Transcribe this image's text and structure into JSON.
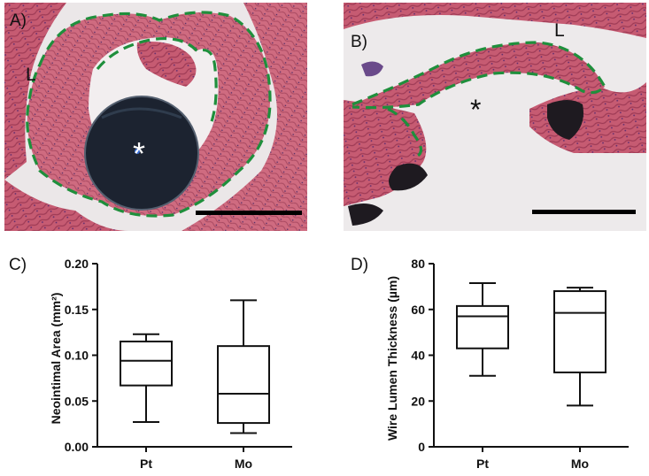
{
  "panels": {
    "a": {
      "letter": "A)",
      "lumen_label": "L",
      "marker": "*"
    },
    "b": {
      "letter": "B)",
      "lumen_label": "L",
      "marker": "*"
    },
    "c": {
      "letter": "C)"
    },
    "d": {
      "letter": "D)"
    }
  },
  "colors": {
    "tissue": "#c0576e",
    "tissue_light": "#d98ea0",
    "outline": "#1f8f3c",
    "wire": "#1c2330",
    "scale_bar": "#000000"
  },
  "chart_data": [
    {
      "type": "box",
      "panel": "C)",
      "ylabel": "Neointimal Area (mm²)",
      "xlabel": "",
      "categories": [
        "Pt",
        "Mo"
      ],
      "ylim": [
        0,
        0.2
      ],
      "yticks": [
        "0.00",
        "0.05",
        "0.10",
        "0.15",
        "0.20"
      ],
      "boxes": [
        {
          "category": "Pt",
          "min": 0.027,
          "q1": 0.067,
          "median": 0.094,
          "q3": 0.115,
          "max": 0.123
        },
        {
          "category": "Mo",
          "min": 0.015,
          "q1": 0.026,
          "median": 0.058,
          "q3": 0.11,
          "max": 0.16
        }
      ]
    },
    {
      "type": "box",
      "panel": "D)",
      "ylabel": "Wire Lumen Thickness (µm)",
      "xlabel": "",
      "categories": [
        "Pt",
        "Mo"
      ],
      "ylim": [
        0,
        80
      ],
      "yticks": [
        "0",
        "20",
        "40",
        "60",
        "80"
      ],
      "boxes": [
        {
          "category": "Pt",
          "min": 31,
          "q1": 43,
          "median": 57,
          "q3": 61.5,
          "max": 71.5
        },
        {
          "category": "Mo",
          "min": 18,
          "q1": 32.5,
          "median": 58.5,
          "q3": 68,
          "max": 69.5
        }
      ]
    }
  ]
}
